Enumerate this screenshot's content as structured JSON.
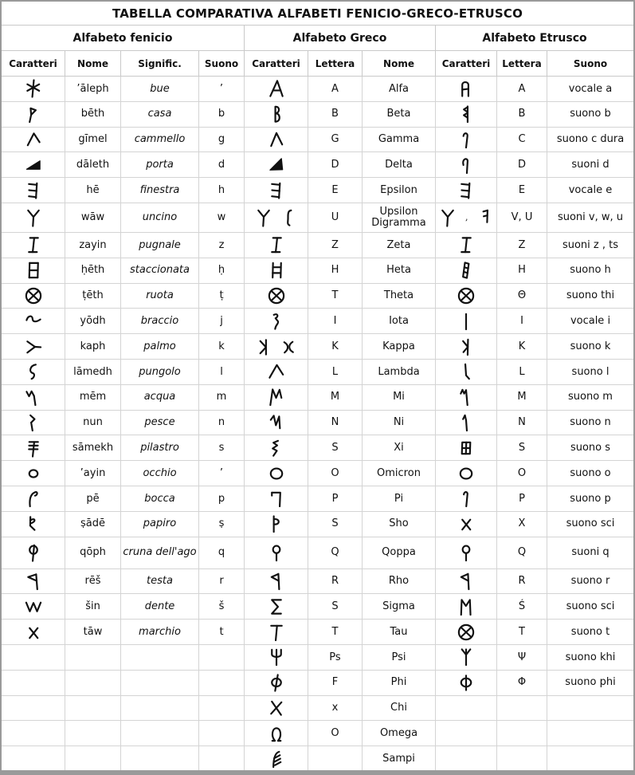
{
  "title": "TABELLA COMPARATIVA ALFABETI FENICIO-GRECO-ETRUSCO",
  "sections": {
    "phoenician": "Alfabeto fenicio",
    "greek": "Alfabeto Greco",
    "etruscan": "Alfabeto Etrusco"
  },
  "columns": [
    "Caratteri",
    "Nome",
    "Signific.",
    "Suono",
    "Caratteri",
    "Lettera",
    "Nome",
    "Caratteri",
    "Lettera",
    "Suono"
  ],
  "colors": {
    "grid_line": "#d4d4d4",
    "outer_border": "#9a9a9a",
    "text": "#111111",
    "background": "#ffffff"
  },
  "rows": [
    {
      "ph": {
        "g": [
          "aleph"
        ],
        "nome": "’āleph",
        "sig": "bue",
        "suono": "’"
      },
      "gr": {
        "g": [
          "alpha"
        ],
        "lettera": "A",
        "nome": "Alfa"
      },
      "etr": {
        "g": [
          "etr-a"
        ],
        "lettera": "A",
        "suono": "vocale a"
      }
    },
    {
      "ph": {
        "g": [
          "beth"
        ],
        "nome": "bēth",
        "sig": "casa",
        "suono": "b"
      },
      "gr": {
        "g": [
          "beta"
        ],
        "lettera": "B",
        "nome": "Beta"
      },
      "etr": {
        "g": [
          "etr-b"
        ],
        "lettera": "B",
        "suono": "suono b"
      }
    },
    {
      "ph": {
        "g": [
          "gimel"
        ],
        "nome": "gīmel",
        "sig": "cammello",
        "suono": "g"
      },
      "gr": {
        "g": [
          "gamma"
        ],
        "lettera": "G",
        "nome": "Gamma"
      },
      "etr": {
        "g": [
          "etr-c"
        ],
        "lettera": "C",
        "suono": "suono c dura"
      }
    },
    {
      "ph": {
        "g": [
          "daleth"
        ],
        "nome": "dāleth",
        "sig": "porta",
        "suono": "d"
      },
      "gr": {
        "g": [
          "delta"
        ],
        "lettera": "D",
        "nome": "Delta"
      },
      "etr": {
        "g": [
          "etr-d"
        ],
        "lettera": "D",
        "suono": "suoni d"
      }
    },
    {
      "ph": {
        "g": [
          "he"
        ],
        "nome": "hē",
        "sig": "finestra",
        "suono": "h"
      },
      "gr": {
        "g": [
          "he"
        ],
        "lettera": "E",
        "nome": "Epsilon"
      },
      "etr": {
        "g": [
          "he"
        ],
        "lettera": "E",
        "suono": "vocale e"
      }
    },
    {
      "tall": 1,
      "ph": {
        "g": [
          "waw"
        ],
        "nome": "wāw",
        "sig": "uncino",
        "suono": "w"
      },
      "gr": {
        "g": [
          "waw",
          "digamma"
        ],
        "lettera": "U",
        "nome": "Upsilon Digramma"
      },
      "etr": {
        "g": [
          "waw",
          "comma",
          "etr-f"
        ],
        "lettera": "V, U",
        "suono": "suoni v, w, u"
      }
    },
    {
      "ph": {
        "g": [
          "zayin"
        ],
        "nome": "zayin",
        "sig": "pugnale",
        "suono": "z"
      },
      "gr": {
        "g": [
          "zayin"
        ],
        "lettera": "Z",
        "nome": "Zeta"
      },
      "etr": {
        "g": [
          "zayin"
        ],
        "lettera": "Z",
        "suono": "suoni z , ts"
      }
    },
    {
      "ph": {
        "g": [
          "heth"
        ],
        "nome": "ḥēth",
        "sig": "staccionata",
        "suono": "ḥ"
      },
      "gr": {
        "g": [
          "heta"
        ],
        "lettera": "H",
        "nome": "Heta"
      },
      "etr": {
        "g": [
          "etr-h"
        ],
        "lettera": "H",
        "suono": "suono h"
      }
    },
    {
      "ph": {
        "g": [
          "teth"
        ],
        "nome": "ṭēth",
        "sig": "ruota",
        "suono": "ṭ"
      },
      "gr": {
        "g": [
          "teth"
        ],
        "lettera": "T",
        "nome": "Theta"
      },
      "etr": {
        "g": [
          "teth"
        ],
        "lettera": "Θ",
        "suono": "suono thi"
      }
    },
    {
      "ph": {
        "g": [
          "yodh"
        ],
        "nome": "yōdh",
        "sig": "braccio",
        "suono": "j"
      },
      "gr": {
        "g": [
          "iota"
        ],
        "lettera": "I",
        "nome": "Iota"
      },
      "etr": {
        "g": [
          "etr-i"
        ],
        "lettera": "I",
        "suono": "vocale i"
      }
    },
    {
      "ph": {
        "g": [
          "kaph"
        ],
        "nome": "kaph",
        "sig": "palmo",
        "suono": "k"
      },
      "gr": {
        "g": [
          "kappa1",
          "kappa2"
        ],
        "lettera": "K",
        "nome": "Kappa"
      },
      "etr": {
        "g": [
          "etr-k"
        ],
        "lettera": "K",
        "suono": "suono k"
      }
    },
    {
      "ph": {
        "g": [
          "lamedh"
        ],
        "nome": "lāmedh",
        "sig": "pungolo",
        "suono": "l"
      },
      "gr": {
        "g": [
          "lambda"
        ],
        "lettera": "L",
        "nome": "Lambda"
      },
      "etr": {
        "g": [
          "etr-l"
        ],
        "lettera": "L",
        "suono": "suono l"
      }
    },
    {
      "ph": {
        "g": [
          "mem"
        ],
        "nome": "mēm",
        "sig": "acqua",
        "suono": "m"
      },
      "gr": {
        "g": [
          "mi"
        ],
        "lettera": "M",
        "nome": "Mi"
      },
      "etr": {
        "g": [
          "etr-m"
        ],
        "lettera": "M",
        "suono": "suono m"
      }
    },
    {
      "ph": {
        "g": [
          "nun"
        ],
        "nome": "nun",
        "sig": "pesce",
        "suono": "n"
      },
      "gr": {
        "g": [
          "ni"
        ],
        "lettera": "N",
        "nome": "Ni"
      },
      "etr": {
        "g": [
          "etr-n"
        ],
        "lettera": "N",
        "suono": "suono n"
      }
    },
    {
      "ph": {
        "g": [
          "samekh"
        ],
        "nome": "sāmekh",
        "sig": "pilastro",
        "suono": "s"
      },
      "gr": {
        "g": [
          "xi"
        ],
        "lettera": "S",
        "nome": "Xi"
      },
      "etr": {
        "g": [
          "etr-s"
        ],
        "lettera": "S",
        "suono": "suono s"
      }
    },
    {
      "ph": {
        "g": [
          "ayin"
        ],
        "nome": "’ayin",
        "sig": "occhio",
        "suono": "’"
      },
      "gr": {
        "g": [
          "omicron"
        ],
        "lettera": "O",
        "nome": "Omicron"
      },
      "etr": {
        "g": [
          "omicron"
        ],
        "lettera": "O",
        "suono": "suono o"
      }
    },
    {
      "ph": {
        "g": [
          "pe"
        ],
        "nome": "pē",
        "sig": "bocca",
        "suono": "p"
      },
      "gr": {
        "g": [
          "pi"
        ],
        "lettera": "P",
        "nome": "Pi"
      },
      "etr": {
        "g": [
          "etr-p"
        ],
        "lettera": "P",
        "suono": "suono p"
      }
    },
    {
      "ph": {
        "g": [
          "tsade"
        ],
        "nome": "ṣādē",
        "sig": "papiro",
        "suono": "ṣ"
      },
      "gr": {
        "g": [
          "sho"
        ],
        "lettera": "S",
        "nome": "Sho"
      },
      "etr": {
        "g": [
          "taw"
        ],
        "lettera": "X",
        "suono": "suono sci"
      }
    },
    {
      "tall": 2,
      "ph": {
        "g": [
          "qoph"
        ],
        "nome": "qōph",
        "sig": "cruna dell'ago",
        "suono": "q"
      },
      "gr": {
        "g": [
          "qoppa"
        ],
        "lettera": "Q",
        "nome": "Qoppa"
      },
      "etr": {
        "g": [
          "qoppa"
        ],
        "lettera": "Q",
        "suono": "suoni q"
      }
    },
    {
      "ph": {
        "g": [
          "resh"
        ],
        "nome": "rēš",
        "sig": "testa",
        "suono": "r"
      },
      "gr": {
        "g": [
          "rho"
        ],
        "lettera": "R",
        "nome": "Rho"
      },
      "etr": {
        "g": [
          "rho"
        ],
        "lettera": "R",
        "suono": "suono r"
      }
    },
    {
      "ph": {
        "g": [
          "shin"
        ],
        "nome": "šin",
        "sig": "dente",
        "suono": "š"
      },
      "gr": {
        "g": [
          "sigma"
        ],
        "lettera": "S",
        "nome": "Sigma"
      },
      "etr": {
        "g": [
          "etr-san"
        ],
        "lettera": "Ś",
        "suono": "suono sci"
      }
    },
    {
      "ph": {
        "g": [
          "taw"
        ],
        "nome": "tāw",
        "sig": "marchio",
        "suono": "t"
      },
      "gr": {
        "g": [
          "tau"
        ],
        "lettera": "T",
        "nome": "Tau"
      },
      "etr": {
        "g": [
          "teth"
        ],
        "lettera": "T",
        "suono": "suono t"
      }
    },
    {
      "gr": {
        "g": [
          "psi"
        ],
        "lettera": "Ps",
        "nome": "Psi"
      },
      "etr": {
        "g": [
          "etr-khi"
        ],
        "lettera": "Ψ",
        "suono": "suono khi"
      }
    },
    {
      "gr": {
        "g": [
          "phi"
        ],
        "lettera": "F",
        "nome": "Phi"
      },
      "etr": {
        "g": [
          "etr-phi"
        ],
        "lettera": "Φ",
        "suono": "suono phi"
      }
    },
    {
      "gr": {
        "g": [
          "chi"
        ],
        "lettera": "x",
        "nome": "Chi"
      }
    },
    {
      "gr": {
        "g": [
          "omega"
        ],
        "lettera": "O",
        "nome": "Omega"
      }
    },
    {
      "gr": {
        "g": [
          "sampi"
        ],
        "lettera": "",
        "nome": "Sampi"
      }
    }
  ],
  "glyph_paths": {
    "comma": [
      "M54 70 C58 80 52 86 44 94"
    ],
    "aleph": [
      "M52 6 L44 94",
      "M18 28 L80 62",
      "M18 62 L80 28"
    ],
    "beth": [
      "M30 92 L38 54",
      "M38 54 L35 20 L62 30 Z"
    ],
    "gimel": [
      "M20 80 L52 18 L82 64"
    ],
    "daleth": [
      "F M14 72 L84 28 L84 72 Z"
    ],
    "he": [
      "M68 12 L63 90",
      "M67 20 L26 16",
      "M66 52 L27 48",
      "M64 84 L26 80"
    ],
    "waw": [
      "M47 94 L50 46",
      "M50 46 L22 12",
      "M50 46 L78 12"
    ],
    "zayin": [
      "M32 14 L74 14",
      "M26 88 L68 88",
      "M54 14 L46 88"
    ],
    "heth": [
      "M30 12 L28 88",
      "M74 12 L72 88",
      "M30 12 L74 12",
      "M29 50 L73 50",
      "M28 88 L72 88"
    ],
    "teth": [
      "M12 50 A38 38 0 1 1 88 50 A38 38 0 1 1 12 50",
      "M25 26 L76 74",
      "M24 74 L75 26"
    ],
    "yodh": [
      "M14 44 C22 18 44 18 45 36 C46 54 62 56 86 40"
    ],
    "kaph": [
      "M18 22 L58 50",
      "M18 80 L58 50",
      "M58 50 L88 52"
    ],
    "lamedh": [
      "M62 14 C30 20 26 52 46 58 C60 62 54 82 40 88"
    ],
    "mem": [
      "M14 22 L27 46 L40 20 L53 44",
      "M53 44 L60 92"
    ],
    "nun": [
      "M34 12 L56 32 L38 50",
      "M38 50 L45 92"
    ],
    "samekh": [
      "M28 18 L74 18",
      "M27 37 L73 37",
      "M26 56 L72 56",
      "M54 18 L46 94"
    ],
    "ayin": [
      "M28 50 A22 19 0 1 1 72 50 A22 19 0 1 1 28 50"
    ],
    "pe": [
      "M32 92 C28 56 34 28 58 18 C74 13 72 34 58 36"
    ],
    "tsade": [
      "M34 14 L33 60 L56 82",
      "M33 32 C60 14 66 40 34 48"
    ],
    "qoph": [
      "M30 36 A20 21 0 1 1 70 36 A20 21 0 1 1 30 36",
      "M54 12 L46 94"
    ],
    "resh": [
      "M64 14 L22 28 L62 46",
      "M64 14 L70 92"
    ],
    "shin": [
      "M12 28 L31 74 L50 30 L69 74 L88 28"
    ],
    "taw": [
      "M30 28 L72 80",
      "M30 80 L72 28"
    ],
    "alpha": [
      "M18 90 L54 10 L82 90",
      "M31 60 L72 60"
    ],
    "beta": [
      "M44 12 L44 90",
      "M44 12 C68 8 70 44 44 47",
      "M44 47 C72 44 74 92 44 90"
    ],
    "gamma": [
      "M22 84 L50 16 L80 76"
    ],
    "delta": [
      "F M16 76 L76 16 L82 74 Z"
    ],
    "digamma": [
      "M64 12 C46 14 48 34 48 52 C48 72 42 84 56 90"
    ],
    "heta": [
      "M32 12 L30 88",
      "M74 12 L72 88",
      "M31 34 L73 34",
      "M30 64 L72 64"
    ],
    "iota": [
      "M36 16 C58 6 62 26 45 34 L58 50 C62 64 46 66 43 90"
    ],
    "kappa1": [
      "M62 14 L62 90",
      "M62 52 L32 20",
      "M62 52 L32 84"
    ],
    "kappa2": [
      "M28 26 C52 40 52 62 30 80",
      "M72 24 C48 40 50 64 74 78"
    ],
    "lambda": [
      "M14 82 L52 16 L84 66"
    ],
    "mi": [
      "M18 92 L30 10 L48 54 L66 12 L76 54"
    ],
    "ni": [
      "M20 36 L36 14 L47 64 L64 18 L68 80"
    ],
    "xi": [
      "M58 12 L34 22 L54 36 L30 52 L52 64 L34 90"
    ],
    "omicron": [
      "M20 50 A30 27 0 1 1 80 50 A30 27 0 1 1 20 50"
    ],
    "pi": [
      "M26 20 L70 20 L67 92",
      "M26 20 L26 36"
    ],
    "sho": [
      "M36 10 L36 92",
      "M36 26 C70 20 70 58 36 52"
    ],
    "qoppa": [
      "M32 34 A18 19 0 1 1 68 34 A18 19 0 1 1 32 34",
      "M50 53 L50 92"
    ],
    "rho": [
      "M60 12 L24 28 L58 46",
      "M60 12 L64 92"
    ],
    "sigma": [
      "M74 14 L26 14 L58 50 L26 86 L74 86"
    ],
    "tau": [
      "M22 16 L78 16",
      "M53 16 L46 92"
    ],
    "psi": [
      "M26 12 L26 36 C26 54 74 54 74 36 L74 12",
      "M50 12 L50 92"
    ],
    "phi": [
      "M26 50 A24 21 0 1 1 74 50 A24 21 0 1 1 26 50",
      "M57 10 L43 94"
    ],
    "chi": [
      "M26 16 L74 86",
      "M76 20 L22 80"
    ],
    "omega": [
      "M28 88 L42 88 C20 62 28 22 50 22 C72 22 80 62 58 88 L72 88"
    ],
    "sampi": [
      "M64 12 C42 18 34 50 34 92",
      "M38 46 L68 30",
      "M40 64 L70 48",
      "M42 82 L72 66"
    ],
    "etr-a": [
      "M30 90 L30 32 C30 12 62 12 62 32 L62 90",
      "M30 56 L62 52"
    ],
    "etr-b": [
      "M58 10 L58 92",
      "M58 14 L38 26 L58 40",
      "M58 44 L38 56 L58 70"
    ],
    "etr-c": [
      "M36 32 C38 12 60 14 57 32 L50 92"
    ],
    "etr-d": [
      "M36 50 C28 16 56 10 58 28 L54 92"
    ],
    "etr-f": [
      "M62 12 L60 74",
      "M62 12 L40 18",
      "M61 38 L42 43"
    ],
    "etr-h": [
      "M44 10 L64 16 L54 90 L34 84 Z",
      "M41 34 L61 40",
      "M38 58 L58 64"
    ],
    "etr-i": [
      "M50 12 L50 92"
    ],
    "etr-k": [
      "M60 12 L58 92",
      "M59 50 L34 20",
      "M59 50 L36 78"
    ],
    "etr-l": [
      "M46 12 L50 70 L66 88"
    ],
    "etr-m": [
      "M22 32 L31 12 L40 32 L50 14",
      "M50 14 L57 92"
    ],
    "etr-n": [
      "M34 32 L44 12 L50 38",
      "M50 38 L54 92"
    ],
    "etr-s": [
      "M30 20 L72 20 L70 80 L28 80 Z",
      "M51 20 L49 80",
      "M29 50 L71 50"
    ],
    "etr-p": [
      "M38 30 C40 12 60 14 57 30 L51 92"
    ],
    "etr-san": [
      "M24 92 L27 14 L49 46 L70 14 L73 92"
    ],
    "etr-khi": [
      "M50 92 L50 38",
      "M50 38 L28 10",
      "M50 38 L72 10",
      "M50 38 L50 10"
    ],
    "etr-phi": [
      "M24 50 A26 22 0 1 1 76 50 A26 22 0 1 1 24 50",
      "M50 14 L50 90"
    ]
  }
}
